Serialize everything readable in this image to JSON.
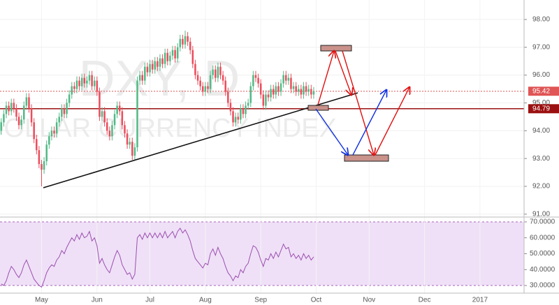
{
  "chart_data": {
    "type": "candlestick",
    "watermark": {
      "title": "DXY, D",
      "subtitle": "DOLLAR CURRENCY INDEX"
    },
    "up_color": "#53b987",
    "down_color": "#eb4d5c",
    "grid": true,
    "ylim": [
      90.92,
      98.7
    ],
    "yticks": [
      {
        "value": 91,
        "label": "91.00"
      },
      {
        "value": 92,
        "label": "92.00"
      },
      {
        "value": 93,
        "label": "93.00"
      },
      {
        "value": 94,
        "label": "94.00"
      },
      {
        "value": 95,
        "label": "95.00"
      },
      {
        "value": 96,
        "label": "96.00"
      },
      {
        "value": 97,
        "label": "97.00"
      },
      {
        "value": 98,
        "label": "98.00"
      }
    ],
    "price_lines": [
      {
        "value": 95.42,
        "color": "#e05555"
      },
      {
        "value": 94.79,
        "color": "#9b1010"
      }
    ],
    "categories": [
      null,
      null,
      null,
      null,
      null,
      null,
      null,
      null,
      null,
      null,
      null,
      null,
      null,
      null,
      null,
      null,
      "May",
      null,
      null,
      null,
      null,
      null,
      null,
      null,
      null,
      null,
      null,
      null,
      null,
      null,
      null,
      null,
      null,
      null,
      null,
      null,
      null,
      null,
      "Jun",
      null,
      null,
      null,
      null,
      null,
      null,
      null,
      null,
      null,
      null,
      null,
      null,
      null,
      null,
      null,
      null,
      null,
      null,
      null,
      null,
      "Jul",
      null,
      null,
      null,
      null,
      null,
      null,
      null,
      null,
      null,
      null,
      null,
      null,
      null,
      null,
      null,
      null,
      null,
      null,
      null,
      null,
      null,
      "Aug",
      null,
      null,
      null,
      null,
      null,
      null,
      null,
      null,
      null,
      null,
      null,
      null,
      null,
      null,
      null,
      null,
      null,
      null,
      null,
      null,
      null,
      "Sep",
      null,
      null,
      null,
      null,
      null,
      null,
      null,
      null,
      null,
      null,
      null,
      null,
      null,
      null,
      null,
      null,
      null,
      null,
      null,
      null,
      null,
      "Oct",
      null,
      null,
      null,
      null,
      null,
      null,
      null,
      null,
      null,
      null,
      null,
      null,
      null,
      null,
      null,
      null,
      null,
      null,
      null,
      null,
      "Nov",
      null,
      null,
      null,
      null,
      null,
      null,
      null,
      null,
      null,
      null,
      null,
      null,
      null,
      null,
      null,
      null,
      null,
      null,
      null,
      null,
      null,
      "Dec",
      null,
      null,
      null,
      null,
      null,
      null,
      null,
      null,
      null,
      null,
      null,
      null,
      null,
      null,
      null,
      null,
      null,
      null,
      null,
      null,
      null,
      "2017",
      null,
      null,
      null,
      null,
      null,
      null,
      null,
      null,
      null,
      null,
      null,
      null,
      null,
      null,
      null,
      null,
      null
    ],
    "open": [
      94.0,
      94.3,
      94.6,
      94.9,
      94.7,
      95.0,
      94.8,
      94.5,
      94.2,
      94.4,
      94.9,
      95.2,
      94.8,
      94.3,
      93.7,
      93.3,
      92.8,
      92.6,
      92.9,
      93.5,
      93.8,
      94.0,
      93.9,
      94.3,
      94.5,
      94.8,
      94.6,
      95.0,
      95.3,
      95.6,
      95.5,
      95.8,
      95.6,
      95.9,
      95.7,
      95.8,
      96.0,
      95.6,
      95.8,
      95.4,
      94.5,
      94.7,
      94.3,
      94.0,
      93.8,
      94.2,
      94.6,
      94.9,
      94.7,
      94.2,
      93.9,
      93.5,
      93.6,
      93.1,
      93.4,
      95.8,
      96.0,
      95.8,
      96.3,
      96.1,
      96.4,
      96.2,
      96.5,
      96.3,
      96.6,
      96.4,
      96.8,
      96.5,
      96.7,
      96.9,
      96.6,
      97.0,
      97.3,
      97.1,
      97.4,
      97.2,
      96.9,
      96.4,
      96.0,
      95.8,
      95.6,
      95.4,
      95.6,
      95.5,
      96.0,
      96.2,
      95.9,
      96.3,
      96.0,
      95.8,
      95.4,
      95.0,
      94.7,
      94.3,
      94.5,
      94.4,
      94.8,
      94.6,
      94.9,
      95.0,
      95.6,
      96.0,
      95.9,
      95.7,
      95.3,
      94.9,
      95.3,
      95.2,
      95.5,
      95.3,
      95.6,
      95.4,
      95.7,
      96.0,
      95.8,
      95.9,
      95.5,
      95.6,
      95.4,
      95.5,
      95.3,
      95.6,
      95.4,
      95.5,
      95.3,
      null,
      null,
      null,
      null,
      null,
      null,
      null,
      null,
      null,
      null,
      null,
      null,
      null,
      null,
      null,
      null,
      null,
      null,
      null,
      null,
      null,
      null,
      null,
      null,
      null,
      null,
      null,
      null,
      null,
      null,
      null,
      null,
      null,
      null,
      null,
      null,
      null,
      null,
      null,
      null,
      null,
      null,
      null,
      null,
      null,
      null,
      null,
      null,
      null,
      null,
      null,
      null,
      null,
      null,
      null,
      null,
      null,
      null,
      null,
      null,
      null,
      null,
      null,
      null,
      null,
      null,
      null,
      null,
      null,
      null,
      null,
      null,
      null,
      null,
      null,
      null,
      null,
      null,
      null,
      null,
      null,
      null,
      null
    ],
    "high": [
      94.45,
      94.75,
      95.05,
      95.05,
      95.15,
      95.15,
      94.95,
      94.65,
      94.55,
      95.05,
      95.35,
      95.35,
      94.95,
      94.45,
      93.85,
      93.45,
      92.95,
      93.05,
      93.65,
      93.95,
      94.15,
      94.15,
      94.45,
      94.65,
      94.95,
      94.95,
      95.15,
      95.45,
      95.75,
      95.75,
      95.95,
      95.95,
      96.05,
      96.05,
      95.95,
      96.15,
      96.15,
      95.95,
      95.95,
      95.55,
      94.85,
      94.85,
      94.45,
      94.15,
      94.35,
      94.75,
      95.05,
      95.05,
      94.85,
      94.35,
      94.05,
      93.75,
      93.75,
      93.55,
      95.95,
      96.15,
      96.15,
      96.45,
      96.45,
      96.55,
      96.55,
      96.65,
      96.65,
      96.75,
      96.75,
      96.95,
      96.95,
      96.85,
      97.05,
      97.05,
      97.15,
      97.45,
      97.45,
      97.6,
      97.55,
      97.35,
      97.05,
      96.55,
      96.15,
      95.95,
      95.75,
      95.75,
      95.75,
      96.15,
      96.35,
      96.35,
      96.45,
      96.45,
      96.15,
      95.95,
      95.55,
      95.15,
      94.85,
      94.65,
      94.65,
      94.95,
      94.95,
      95.05,
      95.15,
      95.75,
      96.15,
      96.15,
      96.05,
      95.85,
      95.45,
      95.45,
      95.45,
      95.65,
      95.65,
      95.75,
      95.75,
      95.85,
      96.15,
      96.15,
      96.05,
      96.05,
      95.75,
      95.75,
      95.65,
      95.65,
      95.75,
      95.75,
      95.65,
      95.65,
      95.57,
      null,
      null,
      null,
      null,
      null,
      null,
      null,
      null,
      null,
      null,
      null,
      null,
      null,
      null,
      null,
      null,
      null,
      null,
      null,
      null,
      null,
      null,
      null,
      null,
      null,
      null,
      null,
      null,
      null,
      null,
      null,
      null,
      null,
      null,
      null,
      null,
      null,
      null,
      null,
      null,
      null,
      null,
      null,
      null,
      null,
      null,
      null,
      null,
      null,
      null,
      null,
      null,
      null,
      null,
      null,
      null,
      null,
      null,
      null,
      null,
      null,
      null,
      null,
      null,
      null,
      null,
      null,
      null,
      null,
      null,
      null,
      null,
      null,
      null,
      null,
      null,
      null,
      null,
      null,
      null,
      null,
      null,
      null
    ],
    "low": [
      93.85,
      94.15,
      94.45,
      94.55,
      94.55,
      94.65,
      94.35,
      94.05,
      94.05,
      94.25,
      94.75,
      94.65,
      94.15,
      93.55,
      93.15,
      92.65,
      92.0,
      92.45,
      92.75,
      93.35,
      93.65,
      93.75,
      93.75,
      94.15,
      94.35,
      94.45,
      94.45,
      94.85,
      95.15,
      95.35,
      95.35,
      95.45,
      95.45,
      95.55,
      95.55,
      95.65,
      95.45,
      95.45,
      95.25,
      94.35,
      94.35,
      94.15,
      93.85,
      93.65,
      93.65,
      94.05,
      94.45,
      94.55,
      94.05,
      93.75,
      93.35,
      93.35,
      92.95,
      92.95,
      93.25,
      95.65,
      95.65,
      95.65,
      95.95,
      95.95,
      96.05,
      96.05,
      96.15,
      96.15,
      96.25,
      96.25,
      96.35,
      96.35,
      96.55,
      96.45,
      96.45,
      96.85,
      96.95,
      96.95,
      97.05,
      96.75,
      96.25,
      95.85,
      95.65,
      95.45,
      95.25,
      95.25,
      95.35,
      95.35,
      95.85,
      95.75,
      95.75,
      95.85,
      95.65,
      95.25,
      94.85,
      94.55,
      94.15,
      94.15,
      94.25,
      94.25,
      94.45,
      94.45,
      94.75,
      94.85,
      95.45,
      95.75,
      95.55,
      95.15,
      94.75,
      94.75,
      95.05,
      95.05,
      95.15,
      95.15,
      95.25,
      95.25,
      95.55,
      95.65,
      95.65,
      95.35,
      95.35,
      95.25,
      95.25,
      95.15,
      95.15,
      95.25,
      95.25,
      95.15,
      95.15,
      null,
      null,
      null,
      null,
      null,
      null,
      null,
      null,
      null,
      null,
      null,
      null,
      null,
      null,
      null,
      null,
      null,
      null,
      null,
      null,
      null,
      null,
      null,
      null,
      null,
      null,
      null,
      null,
      null,
      null,
      null,
      null,
      null,
      null,
      null,
      null,
      null,
      null,
      null,
      null,
      null,
      null,
      null,
      null,
      null,
      null,
      null,
      null,
      null,
      null,
      null,
      null,
      null,
      null,
      null,
      null,
      null,
      null,
      null,
      null,
      null,
      null,
      null,
      null,
      null,
      null,
      null,
      null,
      null,
      null,
      null,
      null,
      null,
      null,
      null,
      null,
      null,
      null,
      null,
      null,
      null,
      null,
      null
    ],
    "close": [
      94.3,
      94.6,
      94.9,
      94.7,
      95.0,
      94.8,
      94.5,
      94.2,
      94.4,
      94.9,
      95.2,
      94.8,
      94.3,
      93.7,
      93.3,
      92.8,
      92.6,
      92.9,
      93.5,
      93.8,
      94.0,
      93.9,
      94.3,
      94.5,
      94.8,
      94.6,
      95.0,
      95.3,
      95.6,
      95.5,
      95.8,
      95.6,
      95.9,
      95.7,
      95.8,
      96.0,
      95.6,
      95.8,
      95.4,
      94.5,
      94.7,
      94.3,
      94.0,
      93.8,
      94.2,
      94.6,
      94.9,
      94.7,
      94.2,
      93.9,
      93.5,
      93.6,
      93.1,
      93.4,
      95.8,
      96.0,
      95.8,
      96.3,
      96.1,
      96.4,
      96.2,
      96.5,
      96.3,
      96.6,
      96.4,
      96.8,
      96.5,
      96.7,
      96.9,
      96.6,
      97.0,
      97.3,
      97.1,
      97.4,
      97.2,
      96.9,
      96.4,
      96.0,
      95.8,
      95.6,
      95.4,
      95.6,
      95.5,
      96.0,
      96.2,
      95.9,
      96.3,
      96.0,
      95.8,
      95.4,
      95.0,
      94.7,
      94.3,
      94.5,
      94.4,
      94.8,
      94.6,
      94.9,
      95.0,
      95.6,
      96.0,
      95.9,
      95.7,
      95.3,
      94.9,
      95.3,
      95.2,
      95.5,
      95.3,
      95.6,
      95.4,
      95.7,
      96.0,
      95.8,
      95.9,
      95.5,
      95.6,
      95.4,
      95.5,
      95.3,
      95.6,
      95.4,
      95.5,
      95.3,
      95.42,
      null,
      null,
      null,
      null,
      null,
      null,
      null,
      null,
      null,
      null,
      null,
      null,
      null,
      null,
      null,
      null,
      null,
      null,
      null,
      null,
      null,
      null,
      null,
      null,
      null,
      null,
      null,
      null,
      null,
      null,
      null,
      null,
      null,
      null,
      null,
      null,
      null,
      null,
      null,
      null,
      null,
      null,
      null,
      null,
      null,
      null,
      null,
      null,
      null,
      null,
      null,
      null,
      null,
      null,
      null,
      null,
      null,
      null,
      null,
      null,
      null,
      null,
      null,
      null,
      null,
      null,
      null,
      null,
      null,
      null,
      null,
      null,
      null,
      null,
      null,
      null,
      null,
      null,
      null,
      null,
      null,
      null,
      null
    ],
    "indicator": {
      "type": "line",
      "color": "#9c4fb0",
      "band": [
        30,
        70
      ],
      "band_color": "#efe0f7",
      "ylim": [
        25.2,
        72.6
      ],
      "yticks": [
        {
          "value": 30,
          "label": "30.0000"
        },
        {
          "value": 40,
          "label": "40.0000"
        },
        {
          "value": 50,
          "label": "50.0000"
        },
        {
          "value": 60,
          "label": "60.0000"
        },
        {
          "value": 70,
          "label": "70.0000"
        }
      ],
      "values": [
        31,
        30,
        33,
        38,
        42,
        40,
        37,
        35,
        38,
        43,
        46,
        42,
        38,
        34,
        32,
        30,
        29,
        33,
        38,
        41,
        43,
        42,
        46,
        48,
        52,
        50,
        54,
        57,
        60,
        58,
        62,
        59,
        63,
        60,
        61,
        64,
        58,
        60,
        55,
        44,
        47,
        43,
        40,
        38,
        43,
        48,
        52,
        49,
        43,
        40,
        37,
        38,
        34,
        37,
        60,
        62,
        59,
        63,
        60,
        63,
        60,
        63,
        60,
        63,
        60,
        64,
        60,
        62,
        64,
        60,
        64,
        66,
        63,
        65,
        62,
        58,
        52,
        47,
        45,
        43,
        41,
        44,
        43,
        50,
        53,
        49,
        54,
        50,
        47,
        42,
        38,
        36,
        33,
        36,
        35,
        40,
        38,
        42,
        44,
        50,
        55,
        54,
        51,
        46,
        42,
        47,
        46,
        50,
        47,
        51,
        48,
        52,
        56,
        53,
        54,
        48,
        50,
        47,
        49,
        46,
        50,
        47,
        49,
        46,
        48,
        null,
        null,
        null,
        null,
        null,
        null,
        null,
        null,
        null,
        null,
        null,
        null,
        null,
        null,
        null,
        null,
        null,
        null,
        null,
        null,
        null,
        null,
        null,
        null,
        null,
        null,
        null,
        null,
        null,
        null,
        null,
        null,
        null,
        null,
        null,
        null,
        null,
        null,
        null,
        null,
        null,
        null,
        null,
        null,
        null,
        null,
        null,
        null,
        null,
        null,
        null,
        null,
        null,
        null,
        null,
        null,
        null,
        null,
        null,
        null,
        null,
        null,
        null,
        null,
        null,
        null,
        null,
        null,
        null,
        null,
        null,
        null,
        null,
        null,
        null,
        null,
        null,
        null,
        null,
        null,
        null,
        null,
        null
      ]
    }
  }
}
